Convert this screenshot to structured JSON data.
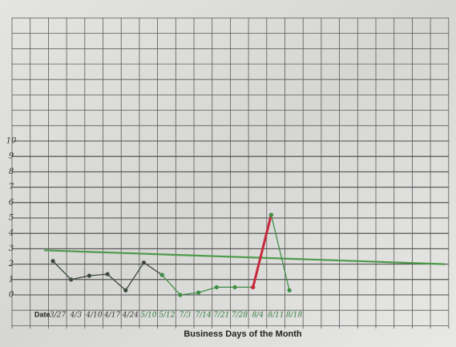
{
  "chart_data": {
    "type": "line",
    "x_label_prefix": "Date",
    "x_axis_title": "Business Days of the Month",
    "categories": [
      "3/27",
      "4/3",
      "4/10",
      "4/17",
      "4/24",
      "5/10",
      "5/12",
      "7/3",
      "7/14",
      "7/21",
      "7/28",
      "8/4",
      "8/11",
      "8/18"
    ],
    "series": [
      {
        "color": "#3d4a3a",
        "values": [
          2.2,
          1.0,
          1.25,
          1.35,
          0.3,
          2.1,
          1.3,
          null,
          null,
          null,
          null,
          null,
          null,
          null
        ]
      },
      {
        "color": "#3f8f45",
        "values": [
          null,
          null,
          null,
          null,
          null,
          null,
          1.3,
          0,
          0.15,
          0.5,
          0.5,
          0.5,
          null,
          null
        ]
      },
      {
        "color": "#c8283c",
        "values": [
          null,
          null,
          null,
          null,
          null,
          null,
          null,
          null,
          null,
          null,
          null,
          0.5,
          5.2,
          null
        ]
      },
      {
        "color": "#3f8f45",
        "values": [
          null,
          null,
          null,
          null,
          null,
          null,
          null,
          null,
          null,
          null,
          null,
          null,
          5.2,
          0.3
        ]
      }
    ],
    "reference_line": {
      "color": "#4d9a4a",
      "values": [
        2.9,
        2.0
      ]
    },
    "ylim": [
      0,
      10
    ],
    "yticks": [
      0,
      1,
      2,
      3,
      4,
      5,
      6,
      7,
      8,
      9,
      10
    ],
    "grid": true
  }
}
